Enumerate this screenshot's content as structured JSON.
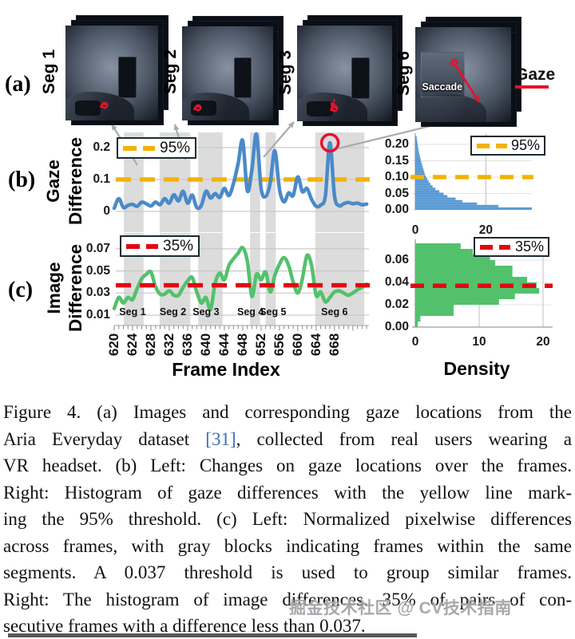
{
  "figure": {
    "panel_a_label": "(a)",
    "panel_b_label": "(b)",
    "panel_c_label": "(c)",
    "images": [
      {
        "label": "Seg 1"
      },
      {
        "label": "Seg 2"
      },
      {
        "label": "Seg 3"
      },
      {
        "label": "Seg 6",
        "annotation": "Saccade"
      }
    ],
    "gaze_legend_label": "Gaze",
    "y_axis_b": {
      "word1": "Gaze",
      "word2": "Difference"
    },
    "y_axis_c": {
      "word1": "Image",
      "word2": "Difference"
    },
    "axis": {
      "frame_index_label": "Frame Index",
      "density_label": "Density"
    },
    "legends": {
      "b_label": "95%",
      "c_label": "35%"
    }
  },
  "chart_data": [
    {
      "type": "line",
      "name": "gaze-difference-over-frames",
      "color": "#4A8AC9",
      "x_start": 620,
      "x_step": 1,
      "values": [
        0.01,
        0.04,
        0.012,
        0.019,
        0.022,
        0.016,
        0.029,
        0.024,
        0.017,
        0.029,
        0.021,
        0.04,
        0.026,
        0.052,
        0.033,
        0.063,
        0.026,
        0.051,
        0.012,
        0.019,
        0.063,
        0.042,
        0.056,
        0.044,
        0.072,
        0.05,
        0.088,
        0.15,
        0.222,
        0.065,
        0.13,
        0.242,
        0.073,
        0.047,
        0.09,
        0.19,
        0.07,
        0.03,
        0.058,
        0.05,
        0.108,
        0.062,
        0.072,
        0.038,
        0.016,
        0.02,
        0.048,
        0.215,
        0.048,
        0.018,
        0.024,
        0.028,
        0.024,
        0.026,
        0.021,
        0.023
      ],
      "ylim": [
        0,
        0.2425
      ],
      "yticks": [
        {
          "label": "0.2",
          "value": 0.2
        },
        {
          "label": "0.1",
          "value": 0.1
        },
        {
          "label": "0",
          "value": 0
        }
      ],
      "xticks": [
        620,
        624,
        628,
        632,
        636,
        640,
        644,
        648,
        652,
        656,
        660,
        664,
        668
      ],
      "threshold": {
        "value": 0.1,
        "label": "95%",
        "color": "#F2B300"
      },
      "highlight_circle": {
        "frame": 667,
        "value": 0.215
      }
    },
    {
      "type": "bar",
      "name": "gaze-difference-histogram",
      "orientation": "horizontal",
      "color": "#5B9BD5",
      "bin_start": 0,
      "bin_width": 0.0075,
      "densities": [
        33,
        23.5,
        17.5,
        13.3,
        11.4,
        9.1,
        8.0,
        6.8,
        5.7,
        4.9,
        4.3,
        3.8,
        3.4,
        3.0,
        2.7,
        2.5,
        2.3,
        2.1,
        1.9,
        1.7,
        1.5,
        1.35,
        1.2,
        1.05,
        0.9,
        0.8,
        0.7,
        0.6,
        0.5,
        0.4
      ],
      "xlabel": "Density",
      "xmax": 33.5,
      "yticks": [
        {
          "label": "0.20",
          "value": 0.2
        },
        {
          "label": "0.15",
          "value": 0.15
        },
        {
          "label": "0.10",
          "value": 0.1
        },
        {
          "label": "0.05",
          "value": 0.05
        },
        {
          "label": "0.00",
          "value": 0.0
        }
      ],
      "xticks": [
        {
          "label": "0",
          "value": 0
        },
        {
          "label": "20",
          "value": 20
        }
      ],
      "threshold": {
        "value": 0.1,
        "label": "95%",
        "color": "#F2B300"
      }
    },
    {
      "type": "line",
      "name": "image-difference-over-frames",
      "color": "#53C16B",
      "x_start": 620,
      "x_step": 1,
      "values": [
        0.016,
        0.026,
        0.021,
        0.026,
        0.024,
        0.034,
        0.043,
        0.047,
        0.049,
        0.036,
        0.029,
        0.029,
        0.032,
        0.028,
        0.028,
        0.035,
        0.041,
        0.044,
        0.031,
        0.021,
        0.026,
        0.015,
        0.039,
        0.048,
        0.042,
        0.055,
        0.061,
        0.066,
        0.071,
        0.059,
        0.027,
        0.047,
        0.042,
        0.049,
        0.031,
        0.046,
        0.056,
        0.062,
        0.055,
        0.04,
        0.03,
        0.043,
        0.064,
        0.055,
        0.028,
        0.031,
        0.022,
        0.026,
        0.031,
        0.032,
        0.03,
        0.028,
        0.03,
        0.033,
        0.035,
        0.038
      ],
      "ylim": [
        0.005,
        0.078
      ],
      "yticks": [
        {
          "label": "0.07",
          "value": 0.07
        },
        {
          "label": "0.05",
          "value": 0.05
        },
        {
          "label": "0.03",
          "value": 0.03
        },
        {
          "label": "0.01",
          "value": 0.01
        }
      ],
      "xticks": [
        620,
        624,
        628,
        632,
        636,
        640,
        644,
        648,
        652,
        656,
        660,
        664,
        668
      ],
      "xlabel": "Frame Index",
      "threshold": {
        "value": 0.037,
        "label": "35%",
        "color": "#E30613"
      },
      "bands": [
        [
          622.1,
          626.4
        ],
        [
          629.9,
          636.6
        ],
        [
          638.3,
          643.6
        ],
        [
          649.6,
          651.8
        ],
        [
          653.0,
          655.2
        ],
        [
          663.8,
          674.5
        ]
      ],
      "segments": [
        {
          "label": "Seg 1",
          "frame": 624
        },
        {
          "label": "Seg 2",
          "frame": 632.8
        },
        {
          "label": "Seg 3",
          "frame": 640
        },
        {
          "label": "Seg 4",
          "frame": 649.7
        },
        {
          "label": "Seg 5",
          "frame": 654.6
        },
        {
          "label": "Seg 6",
          "frame": 668
        }
      ]
    },
    {
      "type": "bar",
      "name": "image-difference-histogram",
      "orientation": "horizontal",
      "color": "#53C16B",
      "bin_start": 0,
      "bin_width": 0.005,
      "densities": [
        0.4,
        0.8,
        6.0,
        6.0,
        13.1,
        15.6,
        19.4,
        19.0,
        17.5,
        15.2,
        15.2,
        12.5,
        11.7,
        9.0,
        7.1
      ],
      "xlabel": "Density",
      "xmax": 21.5,
      "yticks": [
        {
          "label": "0.06",
          "value": 0.06
        },
        {
          "label": "0.04",
          "value": 0.04
        },
        {
          "label": "0.02",
          "value": 0.02
        },
        {
          "label": "0.00",
          "value": 0.0
        }
      ],
      "xticks": [
        {
          "label": "0",
          "value": 0
        },
        {
          "label": "10",
          "value": 10
        },
        {
          "label": "20",
          "value": 20
        }
      ],
      "threshold": {
        "value": 0.037,
        "label": "35%",
        "color": "#E30613"
      }
    }
  ],
  "caption": {
    "line1": "Figure 4.  (a) Images and corresponding gaze locations from the",
    "line2_pre": "Aria Everyday dataset ",
    "line2_cite": "[31]",
    "line2_post": ", collected from real users wearing a",
    "line3": "VR headset. (b) Left: Changes on gaze locations over the frames.",
    "line4": "Right: Histogram of gaze differences with the yellow line mark-",
    "line5": "ing the 95% threshold. (c) Left: Normalized pixelwise differences",
    "line6": "across frames, with gray blocks indicating frames within the same",
    "line7": "segments.  A 0.037 threshold is used to group similar frames.",
    "line8": "Right: The histogram of image differences. 35% of pairs of con-",
    "line9": "secutive frames with a difference less than 0.037."
  },
  "watermark": "掘金技术社区 @ CV技术指南",
  "colors": {
    "blue_line": "#4A8AC9",
    "blue_hist": "#5B9BD5",
    "green": "#53C16B",
    "yellow": "#F2B300",
    "red": "#E30613",
    "red_accent": "#E8112D",
    "band_gray": "#DCDCDC",
    "gridline": "#C9C9C9",
    "connector_gray": "#ABABAB",
    "cite_blue": "#3E6DB5",
    "watermark_gray": "#9EA2A6"
  }
}
